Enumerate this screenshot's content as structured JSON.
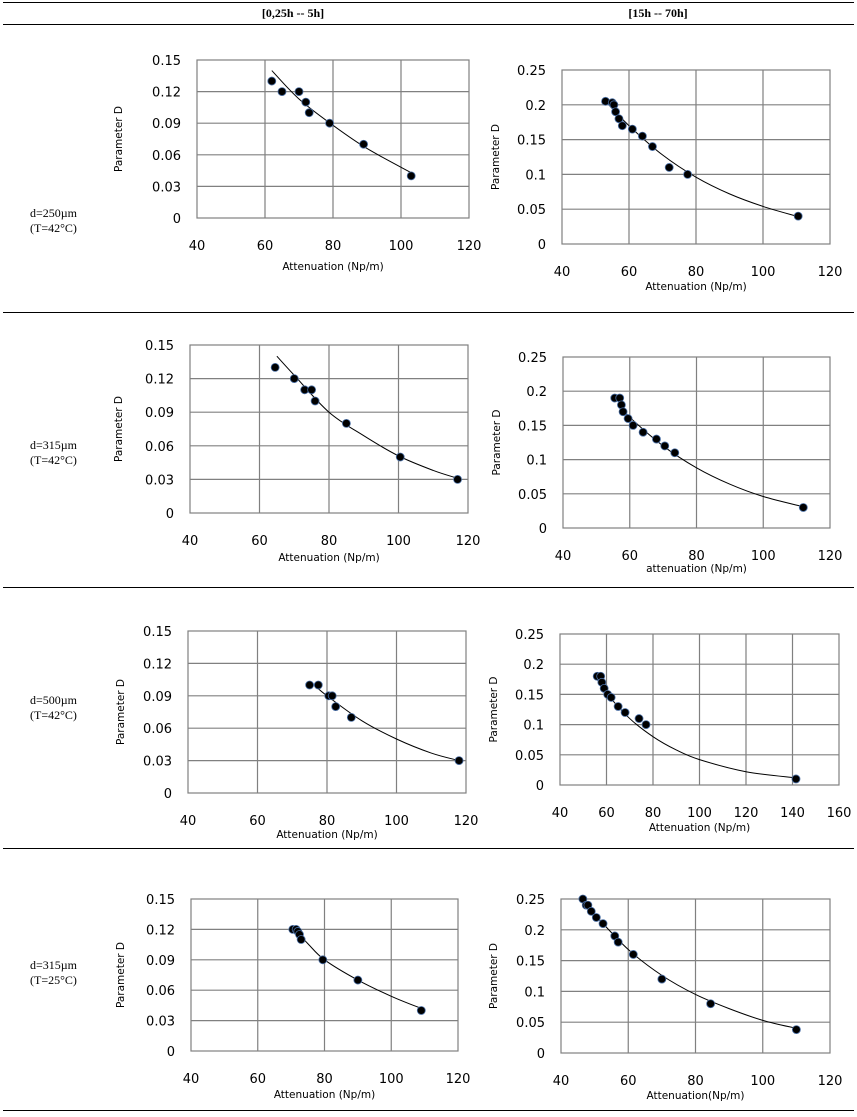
{
  "header": {
    "col_left": "[0,25h -- 5h]",
    "col_right": "[15h -- 70h]"
  },
  "rows": [
    {
      "line1": "d=250µm",
      "line2": "(T=42°C)"
    },
    {
      "line1": "d=315µm",
      "line2": "(T=42°C)"
    },
    {
      "line1": "d=500µm",
      "line2": "(T=42°C)"
    },
    {
      "line1": "d=315µm",
      "line2": "(T=25°C)"
    }
  ],
  "colors": {
    "point": "#000000",
    "point_edge": "#4a6fa5",
    "grid": "#808080",
    "fit": "#000000"
  },
  "chart_data": [
    {
      "id": "r1-left",
      "type": "scatter",
      "title": "",
      "xlabel": "Attenuation (Np/m)",
      "ylabel": "Parameter D",
      "xlim": [
        40,
        120
      ],
      "ylim": [
        0,
        0.15
      ],
      "xticks": [
        "40",
        "60",
        "80",
        "100",
        "120"
      ],
      "yticks": [
        "0",
        "0.03",
        "0.06",
        "0.09",
        "0.12",
        "0.15"
      ],
      "grid": true,
      "legend": "none",
      "points": [
        [
          62,
          0.13
        ],
        [
          65,
          0.12
        ],
        [
          70,
          0.12
        ],
        [
          72,
          0.11
        ],
        [
          73,
          0.1
        ],
        [
          79,
          0.09
        ],
        [
          89,
          0.07
        ],
        [
          103,
          0.04
        ]
      ],
      "fit": [
        [
          62,
          0.14
        ],
        [
          70,
          0.113
        ],
        [
          80,
          0.088
        ],
        [
          90,
          0.066
        ],
        [
          103,
          0.043
        ]
      ]
    },
    {
      "id": "r1-right",
      "type": "scatter",
      "title": "",
      "xlabel": "Attenuation (Np/m)",
      "ylabel": "Parameter D",
      "xlim": [
        40,
        120
      ],
      "ylim": [
        0,
        0.25
      ],
      "xticks": [
        "40",
        "60",
        "80",
        "100",
        "120"
      ],
      "yticks": [
        "0",
        "0.05",
        "0.1",
        "0.15",
        "0.2",
        "0.25"
      ],
      "grid": true,
      "legend": "none",
      "points": [
        [
          53,
          0.205
        ],
        [
          55,
          0.203
        ],
        [
          55.5,
          0.2
        ],
        [
          56,
          0.19
        ],
        [
          57,
          0.18
        ],
        [
          58,
          0.17
        ],
        [
          61,
          0.165
        ],
        [
          64,
          0.155
        ],
        [
          67,
          0.14
        ],
        [
          72,
          0.11
        ],
        [
          77.5,
          0.1
        ],
        [
          110.5,
          0.04
        ]
      ],
      "fit": [
        [
          53,
          0.205
        ],
        [
          60,
          0.17
        ],
        [
          70,
          0.128
        ],
        [
          80,
          0.096
        ],
        [
          90,
          0.072
        ],
        [
          100,
          0.054
        ],
        [
          110,
          0.04
        ]
      ]
    },
    {
      "id": "r2-left",
      "type": "scatter",
      "title": "",
      "xlabel": "Attenuation (Np/m)",
      "ylabel": "Parameter  D",
      "xlim": [
        40,
        120
      ],
      "ylim": [
        0,
        0.15
      ],
      "xticks": [
        "40",
        "60",
        "80",
        "100",
        "120"
      ],
      "yticks": [
        "0",
        "0.03",
        "0.06",
        "0.09",
        "0.12",
        "0.15"
      ],
      "grid": true,
      "legend": "none",
      "points": [
        [
          64.5,
          0.13
        ],
        [
          70,
          0.12
        ],
        [
          73,
          0.11
        ],
        [
          75,
          0.11
        ],
        [
          76,
          0.1
        ],
        [
          85,
          0.08
        ],
        [
          100.5,
          0.05
        ],
        [
          117,
          0.03
        ]
      ],
      "fit": [
        [
          65,
          0.14
        ],
        [
          70,
          0.123
        ],
        [
          80,
          0.09
        ],
        [
          90,
          0.069
        ],
        [
          100,
          0.051
        ],
        [
          110,
          0.038
        ],
        [
          117,
          0.031
        ]
      ]
    },
    {
      "id": "r2-right",
      "type": "scatter",
      "title": "",
      "xlabel": "attenuation (Np/m)",
      "ylabel": "Parameter D",
      "xlim": [
        40,
        120
      ],
      "ylim": [
        0,
        0.25
      ],
      "xticks": [
        "40",
        "60",
        "80",
        "100",
        "120"
      ],
      "yticks": [
        "0",
        "0.05",
        "0.1",
        "0.15",
        "0.2",
        "0.25"
      ],
      "grid": true,
      "legend": "none",
      "points": [
        [
          55.5,
          0.19
        ],
        [
          57,
          0.19
        ],
        [
          57.5,
          0.18
        ],
        [
          58,
          0.17
        ],
        [
          59.5,
          0.16
        ],
        [
          61,
          0.15
        ],
        [
          64,
          0.14
        ],
        [
          68,
          0.13
        ],
        [
          70.5,
          0.12
        ],
        [
          73.5,
          0.11
        ],
        [
          112,
          0.03
        ]
      ],
      "fit": [
        [
          57,
          0.18
        ],
        [
          60,
          0.162
        ],
        [
          70,
          0.12
        ],
        [
          80,
          0.088
        ],
        [
          90,
          0.064
        ],
        [
          100,
          0.046
        ],
        [
          112,
          0.031
        ]
      ]
    },
    {
      "id": "r3-left",
      "type": "scatter",
      "title": "",
      "xlabel": "Attenuation (Np/m)",
      "ylabel": "Parameter  D",
      "xlim": [
        40,
        120
      ],
      "ylim": [
        0,
        0.15
      ],
      "xticks": [
        "40",
        "60",
        "80",
        "100",
        "120"
      ],
      "yticks": [
        "0",
        "0.03",
        "0.06",
        "0.09",
        "0.12",
        "0.15"
      ],
      "grid": true,
      "legend": "none",
      "points": [
        [
          75,
          0.1
        ],
        [
          77.5,
          0.1
        ],
        [
          80.5,
          0.09
        ],
        [
          81.5,
          0.09
        ],
        [
          82.5,
          0.08
        ],
        [
          87,
          0.07
        ],
        [
          118,
          0.03
        ]
      ],
      "fit": [
        [
          77,
          0.098
        ],
        [
          80,
          0.09
        ],
        [
          90,
          0.067
        ],
        [
          100,
          0.05
        ],
        [
          110,
          0.037
        ],
        [
          118,
          0.03
        ]
      ]
    },
    {
      "id": "r3-right",
      "type": "scatter",
      "title": "",
      "xlabel": "Attenuation (Np/m)",
      "ylabel": "Parameter D",
      "xlim": [
        40,
        160
      ],
      "ylim": [
        0,
        0.25
      ],
      "xticks": [
        "40",
        "60",
        "80",
        "100",
        "120",
        "140",
        "160"
      ],
      "yticks": [
        "0",
        "0.05",
        "0.1",
        "0.15",
        "0.2",
        "0.25"
      ],
      "grid": true,
      "legend": "none",
      "points": [
        [
          56,
          0.18
        ],
        [
          57.5,
          0.18
        ],
        [
          58,
          0.17
        ],
        [
          59,
          0.16
        ],
        [
          60.5,
          0.15
        ],
        [
          62,
          0.145
        ],
        [
          65,
          0.13
        ],
        [
          68,
          0.12
        ],
        [
          74,
          0.11
        ],
        [
          77,
          0.1
        ],
        [
          141.5,
          0.01
        ]
      ],
      "fit": [
        [
          56,
          0.175
        ],
        [
          60,
          0.152
        ],
        [
          70,
          0.11
        ],
        [
          80,
          0.08
        ],
        [
          90,
          0.058
        ],
        [
          100,
          0.042
        ],
        [
          120,
          0.022
        ],
        [
          141,
          0.012
        ]
      ]
    },
    {
      "id": "r4-left",
      "type": "scatter",
      "title": "",
      "xlabel": "Attenuation (Np/m)",
      "ylabel": "Parameter D",
      "xlim": [
        40,
        120
      ],
      "ylim": [
        0,
        0.15
      ],
      "xticks": [
        "40",
        "60",
        "80",
        "100",
        "120"
      ],
      "yticks": [
        "0",
        "0.03",
        "0.06",
        "0.09",
        "0.12",
        "0.15"
      ],
      "grid": true,
      "legend": "none",
      "points": [
        [
          70.5,
          0.12
        ],
        [
          71.5,
          0.12
        ],
        [
          72,
          0.118
        ],
        [
          72.5,
          0.115
        ],
        [
          73,
          0.11
        ],
        [
          79.5,
          0.09
        ],
        [
          90,
          0.07
        ],
        [
          109,
          0.04
        ]
      ],
      "fit": [
        [
          71,
          0.12
        ],
        [
          75,
          0.106
        ],
        [
          80,
          0.09
        ],
        [
          90,
          0.07
        ],
        [
          100,
          0.054
        ],
        [
          109,
          0.042
        ]
      ]
    },
    {
      "id": "r4-right",
      "type": "scatter",
      "title": "",
      "xlabel": "Attenuation(Np/m)",
      "ylabel": "Parameter D",
      "xlim": [
        40,
        120
      ],
      "ylim": [
        0,
        0.25
      ],
      "xticks": [
        "40",
        "60",
        "80",
        "100",
        "120"
      ],
      "yticks": [
        "0",
        "0.05",
        "0.1",
        "0.15",
        "0.2",
        "0.25"
      ],
      "grid": true,
      "legend": "none",
      "points": [
        [
          46.5,
          0.25
        ],
        [
          47.5,
          0.24
        ],
        [
          48,
          0.24
        ],
        [
          49,
          0.23
        ],
        [
          50.5,
          0.22
        ],
        [
          52.5,
          0.21
        ],
        [
          56,
          0.19
        ],
        [
          57,
          0.18
        ],
        [
          61.5,
          0.16
        ],
        [
          70,
          0.12
        ],
        [
          84.5,
          0.08
        ],
        [
          110,
          0.038
        ]
      ],
      "fit": [
        [
          47,
          0.245
        ],
        [
          50,
          0.225
        ],
        [
          60,
          0.168
        ],
        [
          70,
          0.126
        ],
        [
          80,
          0.095
        ],
        [
          90,
          0.072
        ],
        [
          100,
          0.053
        ],
        [
          110,
          0.04
        ]
      ]
    }
  ]
}
